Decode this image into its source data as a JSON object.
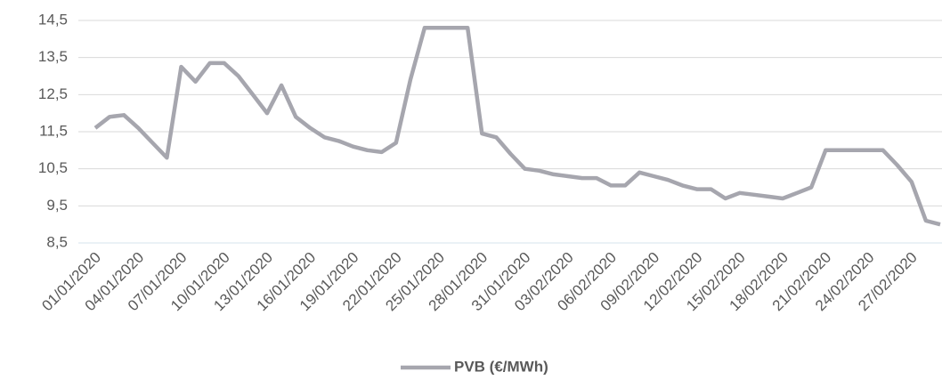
{
  "chart_data": {
    "type": "line",
    "categories": [
      "01/01/2020",
      null,
      null,
      "04/01/2020",
      null,
      null,
      "07/01/2020",
      null,
      null,
      "10/01/2020",
      null,
      null,
      "13/01/2020",
      null,
      null,
      "16/01/2020",
      null,
      null,
      "19/01/2020",
      null,
      null,
      "22/01/2020",
      null,
      null,
      "25/01/2020",
      null,
      null,
      "28/01/2020",
      null,
      null,
      "31/01/2020",
      null,
      null,
      "03/02/2020",
      null,
      null,
      "06/02/2020",
      null,
      null,
      "09/02/2020",
      null,
      null,
      "12/02/2020",
      null,
      null,
      "15/02/2020",
      null,
      null,
      "18/02/2020",
      null,
      null,
      "21/02/2020",
      null,
      null,
      "24/02/2020",
      null,
      null,
      "27/02/2020",
      null,
      null
    ],
    "series": [
      {
        "name": "PVB (€/MWh)",
        "color": "#a6a6ae",
        "values": [
          11.6,
          11.9,
          11.95,
          11.6,
          11.2,
          10.8,
          13.25,
          12.85,
          13.35,
          13.35,
          13.0,
          12.5,
          12.0,
          12.75,
          11.9,
          11.6,
          11.35,
          11.25,
          11.1,
          11.0,
          10.95,
          11.2,
          12.9,
          14.3,
          14.3,
          14.3,
          14.3,
          11.45,
          11.35,
          10.9,
          10.5,
          10.45,
          10.35,
          10.3,
          10.25,
          10.25,
          10.05,
          10.05,
          10.4,
          10.3,
          10.2,
          10.05,
          9.95,
          9.95,
          9.7,
          9.85,
          9.8,
          9.75,
          9.7,
          9.85,
          10.0,
          11.0,
          11.0,
          11.0,
          11.0,
          11.0,
          10.6,
          10.15,
          9.1,
          9.0
        ]
      }
    ],
    "ylim": [
      8.5,
      14.5
    ],
    "yticks": [
      {
        "value": 8.5,
        "label": "8,5"
      },
      {
        "value": 9.5,
        "label": "9,5"
      },
      {
        "value": 10.5,
        "label": "10,5"
      },
      {
        "value": 11.5,
        "label": "11,5"
      },
      {
        "value": 12.5,
        "label": "12,5"
      },
      {
        "value": 13.5,
        "label": "13,5"
      },
      {
        "value": 14.5,
        "label": "14,5"
      }
    ],
    "grid": true,
    "legend": "bottom"
  }
}
